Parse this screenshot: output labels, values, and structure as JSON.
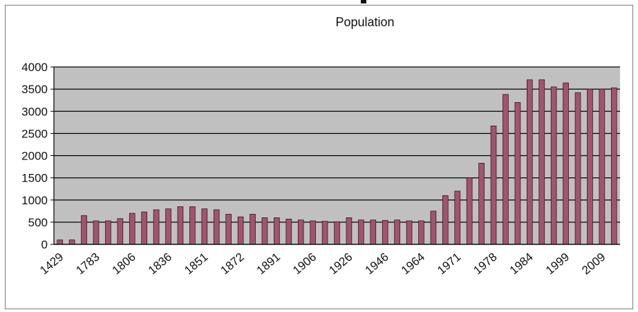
{
  "chart_data": {
    "type": "bar",
    "title": "Population",
    "xlabel": "",
    "ylabel": "",
    "ylim": [
      0,
      4000
    ],
    "yticks": [
      0,
      500,
      1000,
      1500,
      2000,
      2500,
      3000,
      3500,
      4000
    ],
    "grid": true,
    "legend": "none",
    "colors": {
      "bar": "#a4536f",
      "plot_bg": "#c0c0c0",
      "grid": "#000000"
    },
    "x_tick_labels": [
      {
        "index": 0,
        "label": "1429"
      },
      {
        "index": 3,
        "label": "1783"
      },
      {
        "index": 6,
        "label": "1806"
      },
      {
        "index": 9,
        "label": "1836"
      },
      {
        "index": 12,
        "label": "1851"
      },
      {
        "index": 15,
        "label": "1872"
      },
      {
        "index": 18,
        "label": "1891"
      },
      {
        "index": 21,
        "label": "1906"
      },
      {
        "index": 24,
        "label": "1926"
      },
      {
        "index": 27,
        "label": "1946"
      },
      {
        "index": 30,
        "label": "1964"
      },
      {
        "index": 33,
        "label": "1971"
      },
      {
        "index": 36,
        "label": "1978"
      },
      {
        "index": 39,
        "label": "1984"
      },
      {
        "index": 42,
        "label": "1999"
      },
      {
        "index": 45,
        "label": "2009"
      }
    ],
    "values": [
      100,
      100,
      650,
      530,
      530,
      580,
      700,
      730,
      780,
      800,
      850,
      850,
      800,
      780,
      680,
      620,
      680,
      600,
      600,
      570,
      550,
      530,
      520,
      510,
      600,
      550,
      550,
      540,
      550,
      530,
      530,
      750,
      1100,
      1200,
      1500,
      1830,
      2670,
      3380,
      3200,
      3710,
      3710,
      3550,
      3640,
      3420,
      3500,
      3500,
      3530
    ]
  }
}
